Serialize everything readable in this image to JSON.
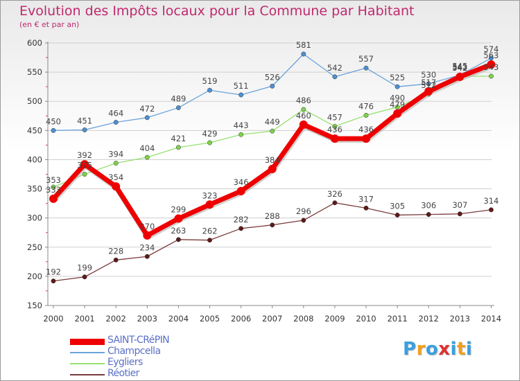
{
  "chart_data": {
    "type": "line",
    "title": "Evolution des Impôts locaux pour la Commune par Habitant",
    "subtitle": "(en € et par an)",
    "categories": [
      "2000",
      "2001",
      "2002",
      "2003",
      "2004",
      "2005",
      "2006",
      "2007",
      "2008",
      "2009",
      "2010",
      "2011",
      "2012",
      "2013",
      "2014"
    ],
    "ylim": [
      150,
      600
    ],
    "yticks": [
      150,
      200,
      250,
      300,
      350,
      400,
      450,
      500,
      550,
      600
    ],
    "series": [
      {
        "name": "Champcella",
        "color": "#6aa3d9",
        "dot": "#4f8fd0",
        "values": [
          450,
          451,
          464,
          472,
          489,
          519,
          511,
          526,
          581,
          542,
          557,
          525,
          530,
          545,
          574
        ]
      },
      {
        "name": "Eygliers",
        "color": "#96e070",
        "dot": "#7fd14d",
        "values": [
          353,
          375,
          394,
          404,
          421,
          429,
          443,
          449,
          486,
          457,
          476,
          490,
          512,
          543,
          543
        ]
      },
      {
        "name": "Réotier",
        "color": "#7a3a3a",
        "dot": "#5e1a1a",
        "values": [
          192,
          199,
          228,
          234,
          263,
          262,
          282,
          288,
          296,
          326,
          317,
          305,
          306,
          307,
          314
        ]
      },
      {
        "name": "SAINT-CRéPIN",
        "color": "#ee0000",
        "dot": "#ee0000",
        "values": [
          333,
          392,
          354,
          270,
          299,
          323,
          346,
          384,
          460,
          436,
          436,
          479,
          517,
          542,
          563
        ]
      }
    ],
    "point_labels": {
      "Champcella": [
        "450",
        "451",
        "464",
        "472",
        "489",
        "519",
        "511",
        "526",
        "581",
        "542",
        "557",
        "525",
        "530",
        "545",
        "574"
      ],
      "Eygliers": [
        "353",
        "375",
        "394",
        "404",
        "421",
        "429",
        "443",
        "449",
        "486",
        "457",
        "476",
        "490",
        "512",
        "543",
        "543"
      ],
      "Réotier": [
        "192",
        "199",
        "228",
        "234",
        "263",
        "262",
        "282",
        "288",
        "296",
        "326",
        "317",
        "305",
        "306",
        "307",
        "314"
      ],
      "SAINT-CRéPIN": [
        "333",
        "392",
        "354",
        "270",
        "299",
        "323",
        "346",
        "384",
        "460",
        "436",
        "436",
        "479",
        "517",
        "542",
        "563"
      ]
    }
  },
  "legend": {
    "items": [
      {
        "label": "SAINT-CRéPIN",
        "color": "#ee0000"
      },
      {
        "label": "Champcella",
        "color": "#6aa3d9"
      },
      {
        "label": "Eygliers",
        "color": "#96e070"
      },
      {
        "label": "Réotier",
        "color": "#7a3a3a"
      }
    ]
  },
  "logo": {
    "text": "Proxiti",
    "letters": [
      "P",
      "r",
      "o",
      "x",
      "i",
      "t",
      "i"
    ],
    "colors": [
      "#3aa0e0",
      "#f0a020",
      "#3aa0e0",
      "#e03030",
      "#3aa0e0",
      "#f0a020",
      "#3aa0e0"
    ]
  }
}
